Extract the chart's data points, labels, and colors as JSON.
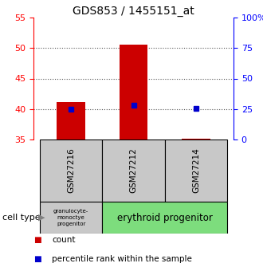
{
  "title": "GDS853 / 1455151_at",
  "samples": [
    "GSM27216",
    "GSM27212",
    "GSM27214"
  ],
  "counts": [
    41.2,
    50.6,
    35.15
  ],
  "percentiles": [
    25.0,
    28.0,
    25.5
  ],
  "ylim_left": [
    35,
    55
  ],
  "ylim_right": [
    0,
    100
  ],
  "yticks_left": [
    35,
    40,
    45,
    50,
    55
  ],
  "yticks_right": [
    0,
    25,
    50,
    75,
    100
  ],
  "bar_color": "#cc0000",
  "dot_color": "#0000cc",
  "bar_width": 0.45,
  "dotted_yticks": [
    40,
    45,
    50
  ],
  "cell_type_label": "cell type",
  "granulocyte_color": "#c8c8c8",
  "erythroid_color": "#7ddd7d",
  "sample_box_color": "#c8c8c8",
  "legend_items": [
    [
      "count",
      "#cc0000"
    ],
    [
      "percentile rank within the sample",
      "#0000cc"
    ]
  ],
  "granulocyte_text": "granulocyte-\nmonoctye\nprogenitor",
  "erythroid_text": "erythroid progenitor"
}
